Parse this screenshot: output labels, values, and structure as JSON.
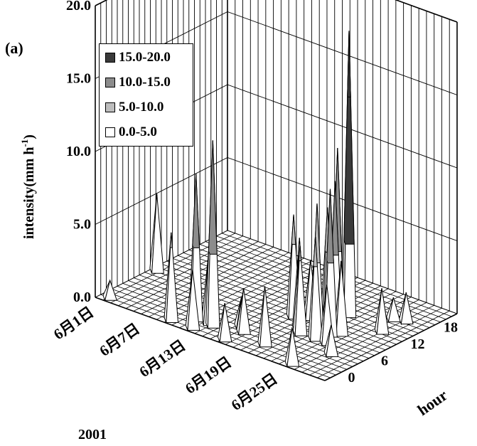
{
  "panel_label": "(a)",
  "year_label": "2001",
  "chart_data": {
    "type": "surface",
    "ylabel": "intensity(mm h",
    "ylabel_sup": "-1",
    "ylabel_close": ")",
    "zlabel": "hour",
    "y_ticks": [
      "0.0",
      "5.0",
      "10.0",
      "15.0",
      "20.0"
    ],
    "ylim": [
      0,
      20
    ],
    "date_ticks": [
      "6月1日",
      "6月7日",
      "6月13日",
      "6月19日",
      "6月25日"
    ],
    "hour_ticks": [
      "0",
      "6",
      "12",
      "18"
    ],
    "legend": [
      {
        "label": "15.0-20.0",
        "color": "#3a3a3a"
      },
      {
        "label": "10.0-15.0",
        "color": "#8c8c8c"
      },
      {
        "label": "5.0-10.0",
        "color": "#bdbdbd"
      },
      {
        "label": "0.0-5.0",
        "color": "#ffffff"
      }
    ],
    "peaks": [
      {
        "day": 1.2,
        "hour": 1.0,
        "value": 1.2
      },
      {
        "day": 0.7,
        "hour": 10.2,
        "value": 5.3
      },
      {
        "day": 11.0,
        "hour": 3.0,
        "value": 10.0
      },
      {
        "day": 9.2,
        "hour": 1.0,
        "value": 6.0
      },
      {
        "day": 13.2,
        "hour": 3.0,
        "value": 12.7
      },
      {
        "day": 12.5,
        "hour": 3.2,
        "value": 4.8
      },
      {
        "day": 12.0,
        "hour": 1.0,
        "value": 4.0
      },
      {
        "day": 16.2,
        "hour": 1.0,
        "value": 2.5
      },
      {
        "day": 15.5,
        "hour": 5.0,
        "value": 2.0
      },
      {
        "day": 16.5,
        "hour": 4.0,
        "value": 3.0
      },
      {
        "day": 18.0,
        "hour": 11.0,
        "value": 7.0
      },
      {
        "day": 20.0,
        "hour": 3.0,
        "value": 4.0
      },
      {
        "day": 20.2,
        "hour": 9.0,
        "value": 6.2
      },
      {
        "day": 19.5,
        "hour": 12.0,
        "value": 4.0
      },
      {
        "day": 21.0,
        "hour": 8.0,
        "value": 6.0
      },
      {
        "day": 22.0,
        "hour": 15.5,
        "value": 19.5
      },
      {
        "day": 22.3,
        "hour": 13.0,
        "value": 12.0
      },
      {
        "day": 22.7,
        "hour": 12.0,
        "value": 10.0
      },
      {
        "day": 21.7,
        "hour": 12.0,
        "value": 8.0
      },
      {
        "day": 23.5,
        "hour": 10.0,
        "value": 10.0
      },
      {
        "day": 22.5,
        "hour": 9.0,
        "value": 9.0
      },
      {
        "day": 23.0,
        "hour": 8.0,
        "value": 7.0
      },
      {
        "day": 24.5,
        "hour": 8.0,
        "value": 4.0
      },
      {
        "day": 24.2,
        "hour": 11.0,
        "value": 5.0
      },
      {
        "day": 25.0,
        "hour": 1.0,
        "value": 2.5
      },
      {
        "day": 26.5,
        "hour": 6.0,
        "value": 2.0
      },
      {
        "day": 27.0,
        "hour": 14.5,
        "value": 3.0
      },
      {
        "day": 27.3,
        "hour": 18.5,
        "value": 2.0
      },
      {
        "day": 26.0,
        "hour": 18.0,
        "value": 1.5
      }
    ]
  }
}
